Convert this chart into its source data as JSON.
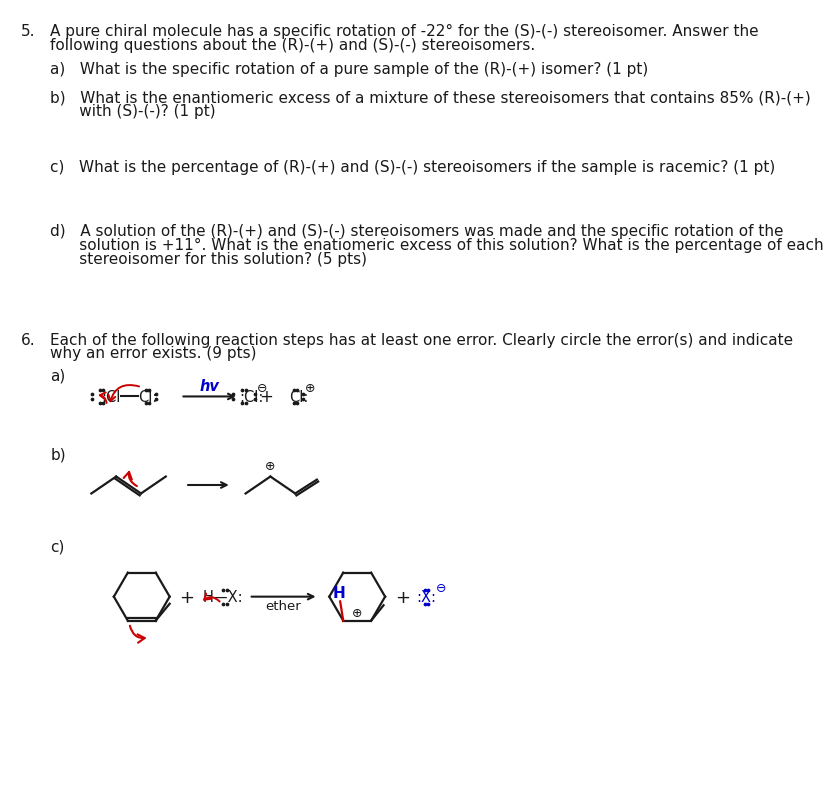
{
  "bg_color": "#ffffff",
  "text_color": "#1a1a1a",
  "blue_color": "#0000cc",
  "red_color": "#cc0000",
  "fig_width": 8.04,
  "fig_height": 10.18,
  "font_size": 11.0,
  "q5_num": "5.",
  "q5_t1": "A pure chiral molecule has a specific rotation of -22° for the (S)-(-) stereoisomer. Answer the",
  "q5_t2": "following questions about the (R)-(+) and (S)-(-) stereoisomers.",
  "q5a": "a)   What is the specific rotation of a pure sample of the (R)-(+) isomer? (1 pt)",
  "q5b1": "b)   What is the enantiomeric excess of a mixture of these stereoisomers that contains 85% (R)-(+)",
  "q5b2": "      with (S)-(-)? (1 pt)",
  "q5c": "c)   What is the percentage of (R)-(+) and (S)-(-) stereoisomers if the sample is racemic? (1 pt)",
  "q5d1": "d)   A solution of the (R)-(+) and (S)-(-) stereoisomers was made and the specific rotation of the",
  "q5d2": "      solution is +11°. What is the enatiomeric excess of this solution? What is the percentage of each",
  "q5d3": "      stereoisomer for this solution? (5 pts)",
  "q6_num": "6.",
  "q6_t1": "Each of the following reaction steps has at least one error. Clearly circle the error(s) and indicate",
  "q6_t2": "why an error exists. (9 pts)",
  "q6a": "a)",
  "q6b": "b)",
  "q6c": "c)",
  "hv": "hv",
  "ether": "ether",
  "plus": "+",
  "H_label": "H"
}
